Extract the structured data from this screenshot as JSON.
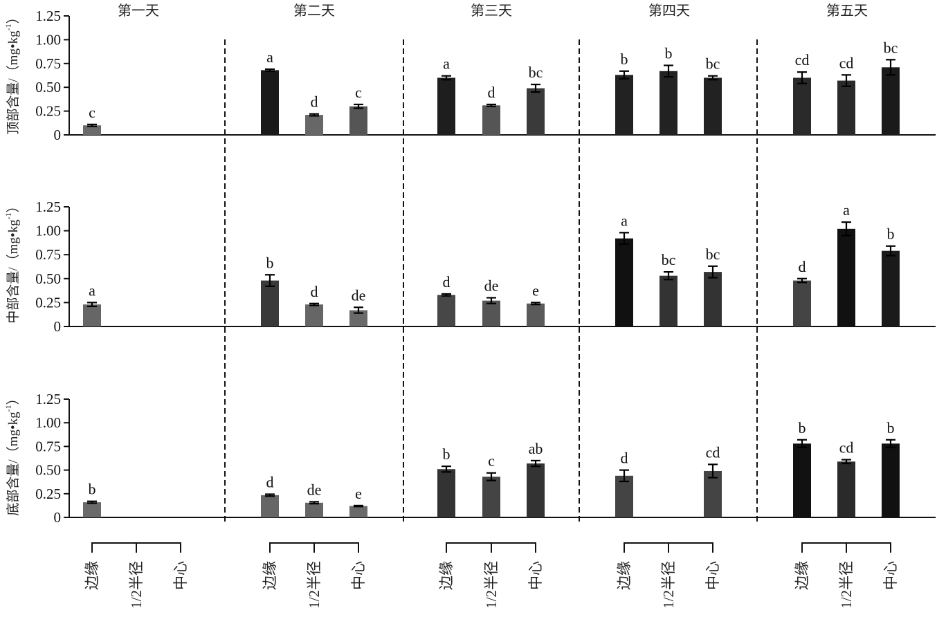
{
  "chart_data": {
    "type": "bar",
    "title": "",
    "days": [
      "第一天",
      "第二天",
      "第三天",
      "第四天",
      "第五天"
    ],
    "positions": [
      "边缘",
      "1/2半径",
      "中心"
    ],
    "ylim": [
      0,
      1.25
    ],
    "yticks": [
      "0",
      "0.25",
      "0.50",
      "0.75",
      "1.00",
      "1.25"
    ],
    "ytick_values": [
      0,
      0.25,
      0.5,
      0.75,
      1.0,
      1.25
    ],
    "grid": false,
    "panels": [
      {
        "name": "top",
        "ylabel": {
          "prefix": "顶部含量/（mg•kg",
          "sup": "-1",
          "suffix": "）"
        },
        "bars": [
          {
            "day": 0,
            "pos": 0,
            "value": 0.1,
            "err": 0.01,
            "label": "c",
            "color": "#6b6b6b"
          },
          {
            "day": 1,
            "pos": 0,
            "value": 0.68,
            "err": 0.01,
            "label": "a",
            "color": "#1a1a1a"
          },
          {
            "day": 1,
            "pos": 1,
            "value": 0.21,
            "err": 0.01,
            "label": "d",
            "color": "#676767"
          },
          {
            "day": 1,
            "pos": 2,
            "value": 0.3,
            "err": 0.02,
            "label": "c",
            "color": "#555555"
          },
          {
            "day": 2,
            "pos": 0,
            "value": 0.6,
            "err": 0.02,
            "label": "a",
            "color": "#1e1e1e"
          },
          {
            "day": 2,
            "pos": 1,
            "value": 0.31,
            "err": 0.01,
            "label": "d",
            "color": "#555555"
          },
          {
            "day": 2,
            "pos": 2,
            "value": 0.49,
            "err": 0.04,
            "label": "bc",
            "color": "#3a3a3a"
          },
          {
            "day": 3,
            "pos": 0,
            "value": 0.63,
            "err": 0.04,
            "label": "b",
            "color": "#222222"
          },
          {
            "day": 3,
            "pos": 1,
            "value": 0.67,
            "err": 0.06,
            "label": "b",
            "color": "#222222"
          },
          {
            "day": 3,
            "pos": 2,
            "value": 0.6,
            "err": 0.02,
            "label": "bc",
            "color": "#222222"
          },
          {
            "day": 4,
            "pos": 0,
            "value": 0.6,
            "err": 0.06,
            "label": "cd",
            "color": "#2a2a2a"
          },
          {
            "day": 4,
            "pos": 1,
            "value": 0.57,
            "err": 0.06,
            "label": "cd",
            "color": "#2a2a2a"
          },
          {
            "day": 4,
            "pos": 2,
            "value": 0.71,
            "err": 0.08,
            "label": "bc",
            "color": "#1a1a1a"
          }
        ]
      },
      {
        "name": "middle",
        "ylabel": {
          "prefix": "中部含量/（mg•kg",
          "sup": "-1",
          "suffix": "）"
        },
        "bars": [
          {
            "day": 0,
            "pos": 0,
            "value": 0.23,
            "err": 0.02,
            "label": "a",
            "color": "#666666"
          },
          {
            "day": 1,
            "pos": 0,
            "value": 0.48,
            "err": 0.06,
            "label": "b",
            "color": "#3a3a3a"
          },
          {
            "day": 1,
            "pos": 1,
            "value": 0.23,
            "err": 0.01,
            "label": "d",
            "color": "#666666"
          },
          {
            "day": 1,
            "pos": 2,
            "value": 0.17,
            "err": 0.03,
            "label": "de",
            "color": "#6a6a6a"
          },
          {
            "day": 2,
            "pos": 0,
            "value": 0.33,
            "err": 0.01,
            "label": "d",
            "color": "#474747"
          },
          {
            "day": 2,
            "pos": 1,
            "value": 0.27,
            "err": 0.03,
            "label": "de",
            "color": "#555555"
          },
          {
            "day": 2,
            "pos": 2,
            "value": 0.24,
            "err": 0.01,
            "label": "e",
            "color": "#5a5a5a"
          },
          {
            "day": 3,
            "pos": 0,
            "value": 0.92,
            "err": 0.06,
            "label": "a",
            "color": "#111111"
          },
          {
            "day": 3,
            "pos": 1,
            "value": 0.53,
            "err": 0.04,
            "label": "bc",
            "color": "#333333"
          },
          {
            "day": 3,
            "pos": 2,
            "value": 0.57,
            "err": 0.06,
            "label": "bc",
            "color": "#333333"
          },
          {
            "day": 4,
            "pos": 0,
            "value": 0.48,
            "err": 0.02,
            "label": "d",
            "color": "#444444"
          },
          {
            "day": 4,
            "pos": 1,
            "value": 1.02,
            "err": 0.07,
            "label": "a",
            "color": "#111111"
          },
          {
            "day": 4,
            "pos": 2,
            "value": 0.79,
            "err": 0.05,
            "label": "b",
            "color": "#1a1a1a"
          }
        ]
      },
      {
        "name": "bottom",
        "ylabel": {
          "prefix": "底部含量/（mg•kg",
          "sup": "-1",
          "suffix": "）"
        },
        "bars": [
          {
            "day": 0,
            "pos": 0,
            "value": 0.16,
            "err": 0.01,
            "label": "b",
            "color": "#6a6a6a"
          },
          {
            "day": 1,
            "pos": 0,
            "value": 0.235,
            "err": 0.01,
            "label": "d",
            "color": "#666666"
          },
          {
            "day": 1,
            "pos": 1,
            "value": 0.155,
            "err": 0.01,
            "label": "de",
            "color": "#666666"
          },
          {
            "day": 1,
            "pos": 2,
            "value": 0.12,
            "err": 0.005,
            "label": "e",
            "color": "#6a6a6a"
          },
          {
            "day": 2,
            "pos": 0,
            "value": 0.51,
            "err": 0.03,
            "label": "b",
            "color": "#333333"
          },
          {
            "day": 2,
            "pos": 1,
            "value": 0.43,
            "err": 0.04,
            "label": "c",
            "color": "#444444"
          },
          {
            "day": 2,
            "pos": 2,
            "value": 0.57,
            "err": 0.03,
            "label": "ab",
            "color": "#333333"
          },
          {
            "day": 3,
            "pos": 0,
            "value": 0.44,
            "err": 0.06,
            "label": "d",
            "color": "#444444"
          },
          {
            "day": 3,
            "pos": 2,
            "value": 0.49,
            "err": 0.07,
            "label": "cd",
            "color": "#444444"
          },
          {
            "day": 4,
            "pos": 0,
            "value": 0.78,
            "err": 0.04,
            "label": "b",
            "color": "#111111"
          },
          {
            "day": 4,
            "pos": 1,
            "value": 0.59,
            "err": 0.02,
            "label": "cd",
            "color": "#2a2a2a"
          },
          {
            "day": 4,
            "pos": 2,
            "value": 0.78,
            "err": 0.04,
            "label": "b",
            "color": "#111111"
          }
        ]
      }
    ]
  }
}
